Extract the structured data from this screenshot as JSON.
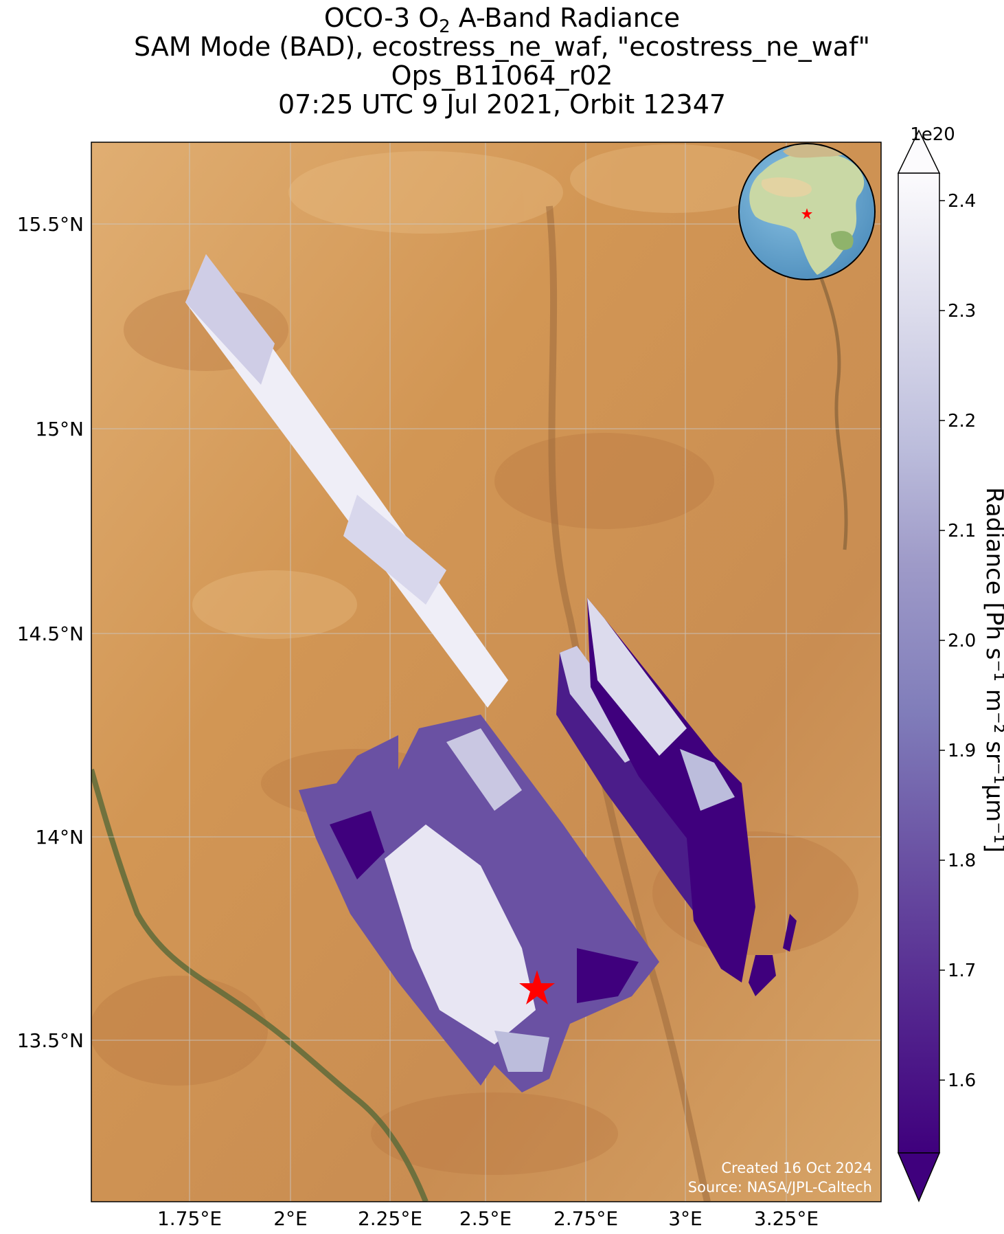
{
  "title": {
    "line1_pre": "OCO-3 O",
    "line1_sub": "2",
    "line1_post": " A-Band Radiance",
    "line2": "SAM Mode (BAD), ecostress_ne_waf, \"ecostress_ne_waf\"",
    "line3": "Ops_B11064_r02",
    "line4": "07:25 UTC 9 Jul 2021, Orbit 12347"
  },
  "axes": {
    "lon_ticks": [
      "1.75°E",
      "2°E",
      "2.25°E",
      "2.5°E",
      "2.75°E",
      "3°E",
      "3.25°E"
    ],
    "lat_ticks": [
      "15.5°N",
      "15°N",
      "14.5°N",
      "14°N",
      "13.5°N"
    ]
  },
  "colorbar": {
    "exponent": "1e20",
    "ticks": [
      "2.4",
      "2.3",
      "2.2",
      "2.1",
      "2.0",
      "1.9",
      "1.8",
      "1.7",
      "1.6"
    ],
    "label": "Radiance [Ph s⁻¹ m⁻² sr⁻¹μm⁻¹]",
    "colormap": "Purples",
    "min": 1.52,
    "max": 2.44,
    "extend": "both"
  },
  "credits": {
    "created": "Created 16 Oct 2024",
    "source": "Source: NASA/JPL-Caltech"
  },
  "target": {
    "marker": "red-star",
    "color": "#ff0000"
  },
  "colors": {
    "desert": "#d49a5c",
    "river": "#5e6b3a",
    "ocean": "#6aa8cf",
    "land_inset": "#c9d8a5",
    "low_radiance": "#3f007d",
    "high_radiance": "#fcfbfd"
  }
}
